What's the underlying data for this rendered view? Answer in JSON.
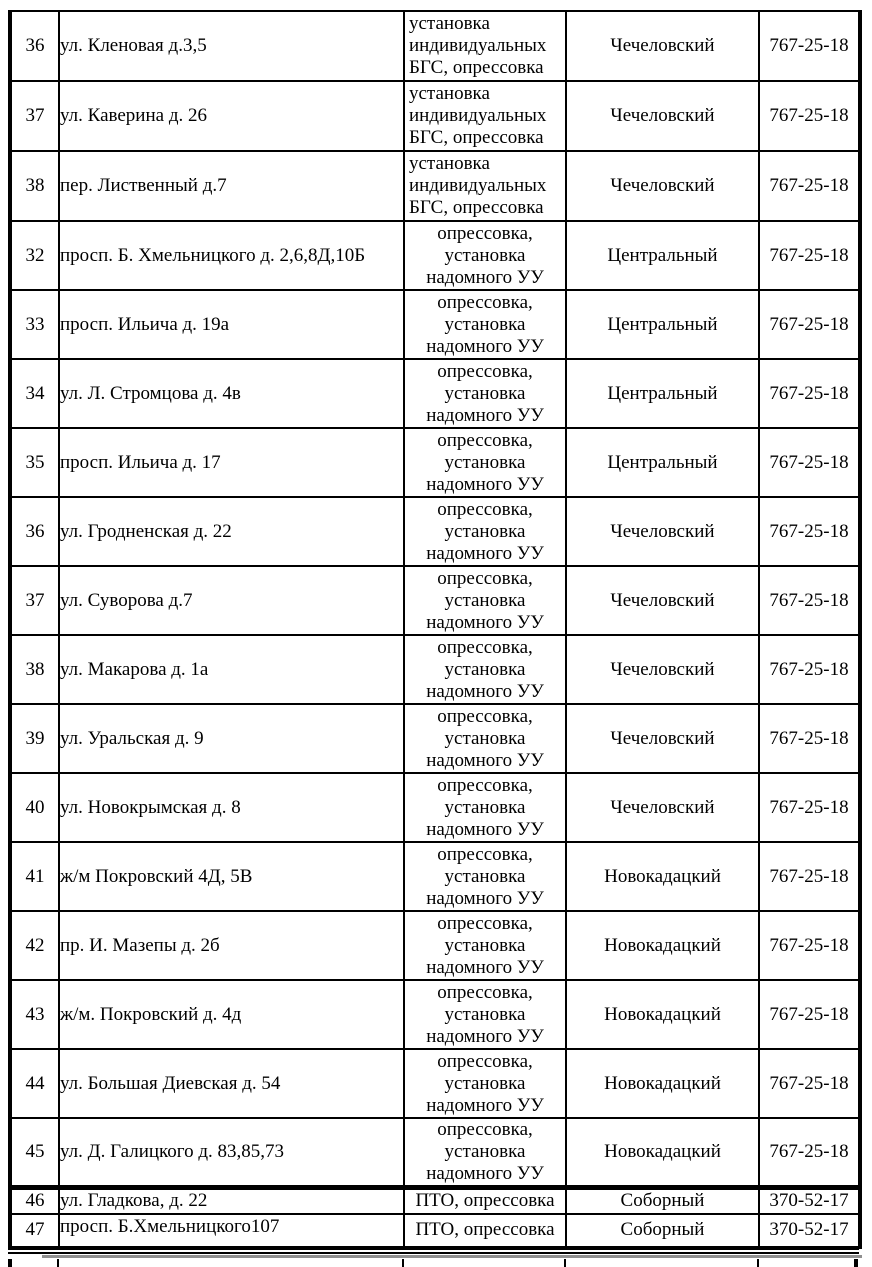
{
  "table": {
    "border_color": "#000000",
    "shadow_color": "#8f8f8f",
    "rows": [
      {
        "num": "36",
        "address": "ул. Кленовая д.3,5",
        "work": "установка\nиндивидуальных\nБГС, опрессовка",
        "district": "Чечеловский",
        "phone": "767-25-18"
      },
      {
        "num": "37",
        "address": "ул. Каверина д. 26",
        "work": "установка\nиндивидуальных\nБГС, опрессовка",
        "district": "Чечеловский",
        "phone": "767-25-18"
      },
      {
        "num": "38",
        "address": "пер. Лиственный д.7",
        "work": "установка\nиндивидуальных\nБГС, опрессовка",
        "district": "Чечеловский",
        "phone": "767-25-18"
      },
      {
        "num": "32",
        "address": "просп. Б. Хмельницкого д. 2,6,8Д,10Б",
        "work": "опрессовка,\nустановка\nнадомного УУ",
        "district": "Центральный",
        "phone": "767-25-18"
      },
      {
        "num": "33",
        "address": "просп. Ильича д. 19а",
        "work": "опрессовка,\nустановка\nнадомного УУ",
        "district": "Центральный",
        "phone": "767-25-18"
      },
      {
        "num": "34",
        "address": "ул. Л. Стромцова д. 4в",
        "work": "опрессовка,\nустановка\nнадомного УУ",
        "district": "Центральный",
        "phone": "767-25-18"
      },
      {
        "num": "35",
        "address": "просп. Ильича д. 17",
        "work": "опрессовка,\nустановка\nнадомного УУ",
        "district": "Центральный",
        "phone": "767-25-18"
      },
      {
        "num": "36",
        "address": "ул. Гродненская д. 22",
        "work": "опрессовка,\nустановка\nнадомного УУ",
        "district": "Чечеловский",
        "phone": "767-25-18"
      },
      {
        "num": "37",
        "address": "ул. Суворова д.7",
        "work": "опрессовка,\nустановка\nнадомного УУ",
        "district": "Чечеловский",
        "phone": "767-25-18"
      },
      {
        "num": "38",
        "address": "ул. Макарова д. 1а",
        "work": "опрессовка,\nустановка\nнадомного УУ",
        "district": "Чечеловский",
        "phone": "767-25-18"
      },
      {
        "num": "39",
        "address": "ул. Уральская д. 9",
        "work": "опрессовка,\nустановка\nнадомного УУ",
        "district": "Чечеловский",
        "phone": "767-25-18"
      },
      {
        "num": "40",
        "address": "ул. Новокрымская д. 8",
        "work": "опрессовка,\nустановка\nнадомного УУ",
        "district": "Чечеловский",
        "phone": "767-25-18"
      },
      {
        "num": "41",
        "address": "ж/м Покровский 4Д, 5В",
        "work": "опрессовка,\nустановка\nнадомного УУ",
        "district": "Новокадацкий",
        "phone": "767-25-18"
      },
      {
        "num": "42",
        "address": "пр. И. Мазепы д. 2б",
        "work": "опрессовка,\nустановка\nнадомного УУ",
        "district": "Новокадацкий",
        "phone": "767-25-18"
      },
      {
        "num": "43",
        "address": "ж/м. Покровский д. 4д",
        "work": "опрессовка,\nустановка\nнадомного УУ",
        "district": "Новокадацкий",
        "phone": "767-25-18"
      },
      {
        "num": "44",
        "address": "ул. Большая Диевская д. 54",
        "work": "опрессовка,\nустановка\nнадомного УУ",
        "district": "Новокадацкий",
        "phone": "767-25-18"
      },
      {
        "num": "45",
        "address": "ул. Д. Галицкого д. 83,85,73",
        "work": "опрессовка,\nустановка\nнадомного УУ",
        "district": "Новокадацкий",
        "phone": "767-25-18"
      },
      {
        "num": "46",
        "address": "ул. Гладкова, д. 22",
        "work": "ПТО, опрессовка",
        "district": "Соборный",
        "phone": "370-52-17"
      },
      {
        "num": "47",
        "address": "просп. Б.Хмельницкого107",
        "work": "ПТО, опрессовка",
        "district": "Соборный",
        "phone": "370-52-17"
      }
    ]
  }
}
